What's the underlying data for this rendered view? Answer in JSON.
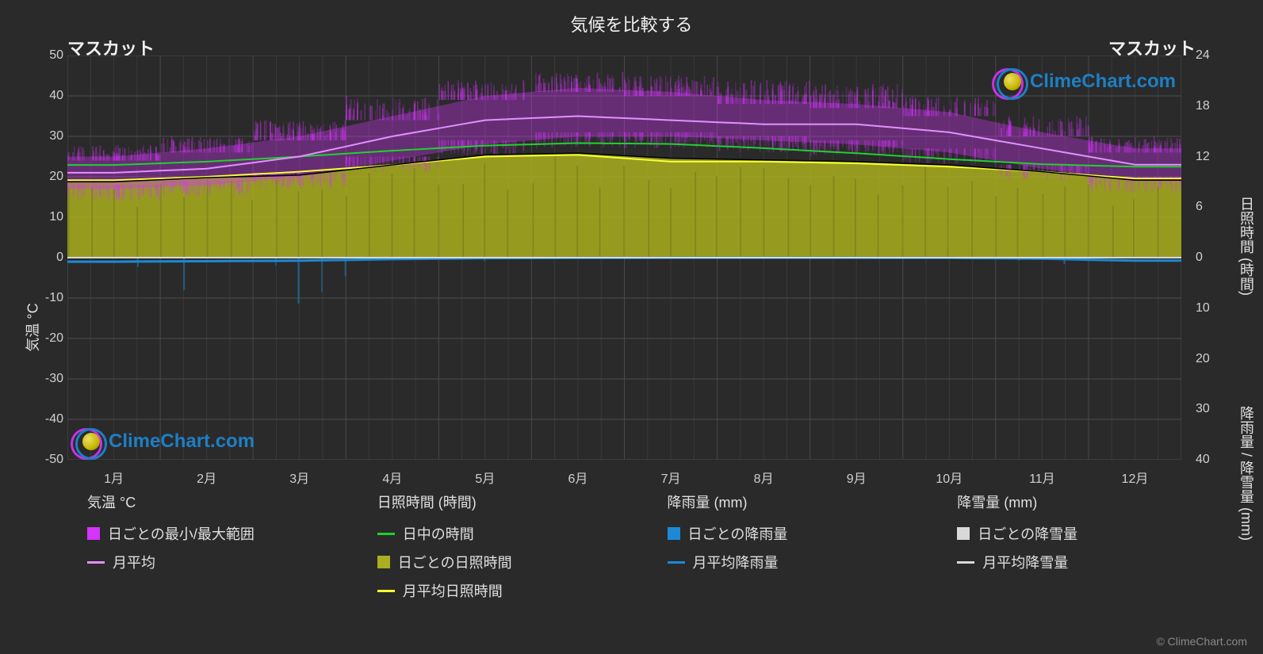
{
  "title": "気候を比較する",
  "location_left": "マスカット",
  "location_right": "マスカット",
  "watermark_text": "ClimeChart.com",
  "copyright": "© ClimeChart.com",
  "chart": {
    "background": "#2a2a2a",
    "plot_background": "#2a2a2a",
    "grid_color": "#4d4d4d",
    "line_width": 2,
    "months": [
      "1月",
      "2月",
      "3月",
      "4月",
      "5月",
      "6月",
      "7月",
      "8月",
      "9月",
      "10月",
      "11月",
      "12月"
    ],
    "left_axis": {
      "label": "気温 °C",
      "min": -50,
      "max": 50,
      "step": 10,
      "ticks": [
        50,
        40,
        30,
        20,
        10,
        0,
        -10,
        -20,
        -30,
        -40,
        -50
      ]
    },
    "right_axis_sun": {
      "label": "日照時間 (時間)",
      "min": 0,
      "max": 24,
      "step": 6,
      "ticks": [
        24,
        18,
        12,
        6,
        0
      ]
    },
    "right_axis_precip": {
      "label": "降雨量 / 降雪量 (mm)",
      "min": 0,
      "max": 40,
      "step": 10,
      "ticks": [
        0,
        10,
        20,
        30,
        40
      ]
    },
    "series": {
      "temp_range": {
        "color": "#d633ff",
        "monthly_min": [
          17,
          18,
          20,
          24,
          28,
          30,
          30,
          29,
          28,
          26,
          22,
          19
        ],
        "monthly_max": [
          25,
          27,
          30,
          35,
          40,
          42,
          41,
          39,
          38,
          36,
          31,
          27
        ],
        "fuzz_high": [
          28,
          30,
          34,
          40,
          44,
          46,
          45,
          44,
          43,
          40,
          35,
          30
        ],
        "fuzz_low": [
          14,
          15,
          17,
          21,
          25,
          27,
          27,
          26,
          25,
          23,
          19,
          16
        ]
      },
      "temp_month_avg": {
        "color": "#e48fff",
        "values": [
          21,
          22,
          25,
          30,
          34,
          35,
          34,
          33,
          33,
          31,
          27,
          23
        ]
      },
      "daylight": {
        "color": "#1fd12c",
        "values_hours": [
          11.0,
          11.4,
          12.0,
          12.7,
          13.3,
          13.6,
          13.5,
          13.0,
          12.4,
          11.7,
          11.1,
          10.8
        ]
      },
      "sunshine_daily": {
        "color": "#c2c82e",
        "fill_color": "#a9af1f",
        "fill_opacity": 0.85,
        "values_hours": [
          9.0,
          9.5,
          9.8,
          11.0,
          12.2,
          12.4,
          11.8,
          11.6,
          11.4,
          11.0,
          10.2,
          9.2
        ]
      },
      "sunshine_month_avg": {
        "color": "#f7ff33",
        "values_hours": [
          9.2,
          9.6,
          10.2,
          11.0,
          12.0,
          12.2,
          11.4,
          11.4,
          11.2,
          10.8,
          10.2,
          9.4
        ]
      },
      "rain_daily": {
        "color": "#1c89d6",
        "values_mm": [
          0.8,
          0.7,
          0.6,
          0.3,
          0.1,
          0.05,
          0.02,
          0.02,
          0.02,
          0.05,
          0.2,
          0.6
        ]
      },
      "rain_month_avg": {
        "color": "#1c89d6",
        "values_mm": [
          0.8,
          0.7,
          0.6,
          0.3,
          0.1,
          0.05,
          0.02,
          0.02,
          0.02,
          0.05,
          0.2,
          0.6
        ]
      },
      "snow_daily": {
        "color": "#d9d9d9",
        "values_mm": [
          0,
          0,
          0,
          0,
          0,
          0,
          0,
          0,
          0,
          0,
          0,
          0
        ]
      },
      "snow_month_avg": {
        "color": "#d9d9d9",
        "values_mm": [
          0,
          0,
          0,
          0,
          0,
          0,
          0,
          0,
          0,
          0,
          0,
          0
        ]
      }
    }
  },
  "legend": {
    "cols": [
      {
        "head": "気温 °C",
        "items": [
          {
            "type": "box",
            "color": "#d633ff",
            "label": "日ごとの最小/最大範囲"
          },
          {
            "type": "line",
            "color": "#e48fff",
            "label": "月平均"
          }
        ]
      },
      {
        "head": "日照時間 (時間)",
        "items": [
          {
            "type": "line",
            "color": "#1fd12c",
            "label": "日中の時間"
          },
          {
            "type": "box",
            "color": "#a9af1f",
            "label": "日ごとの日照時間"
          },
          {
            "type": "line",
            "color": "#f7ff33",
            "label": "月平均日照時間"
          }
        ]
      },
      {
        "head": "降雨量 (mm)",
        "items": [
          {
            "type": "box",
            "color": "#1c89d6",
            "label": "日ごとの降雨量"
          },
          {
            "type": "line",
            "color": "#1c89d6",
            "label": "月平均降雨量"
          }
        ]
      },
      {
        "head": "降雪量 (mm)",
        "items": [
          {
            "type": "box",
            "color": "#d9d9d9",
            "label": "日ごとの降雪量"
          },
          {
            "type": "line",
            "color": "#d9d9d9",
            "label": "月平均降雪量"
          }
        ]
      }
    ]
  }
}
